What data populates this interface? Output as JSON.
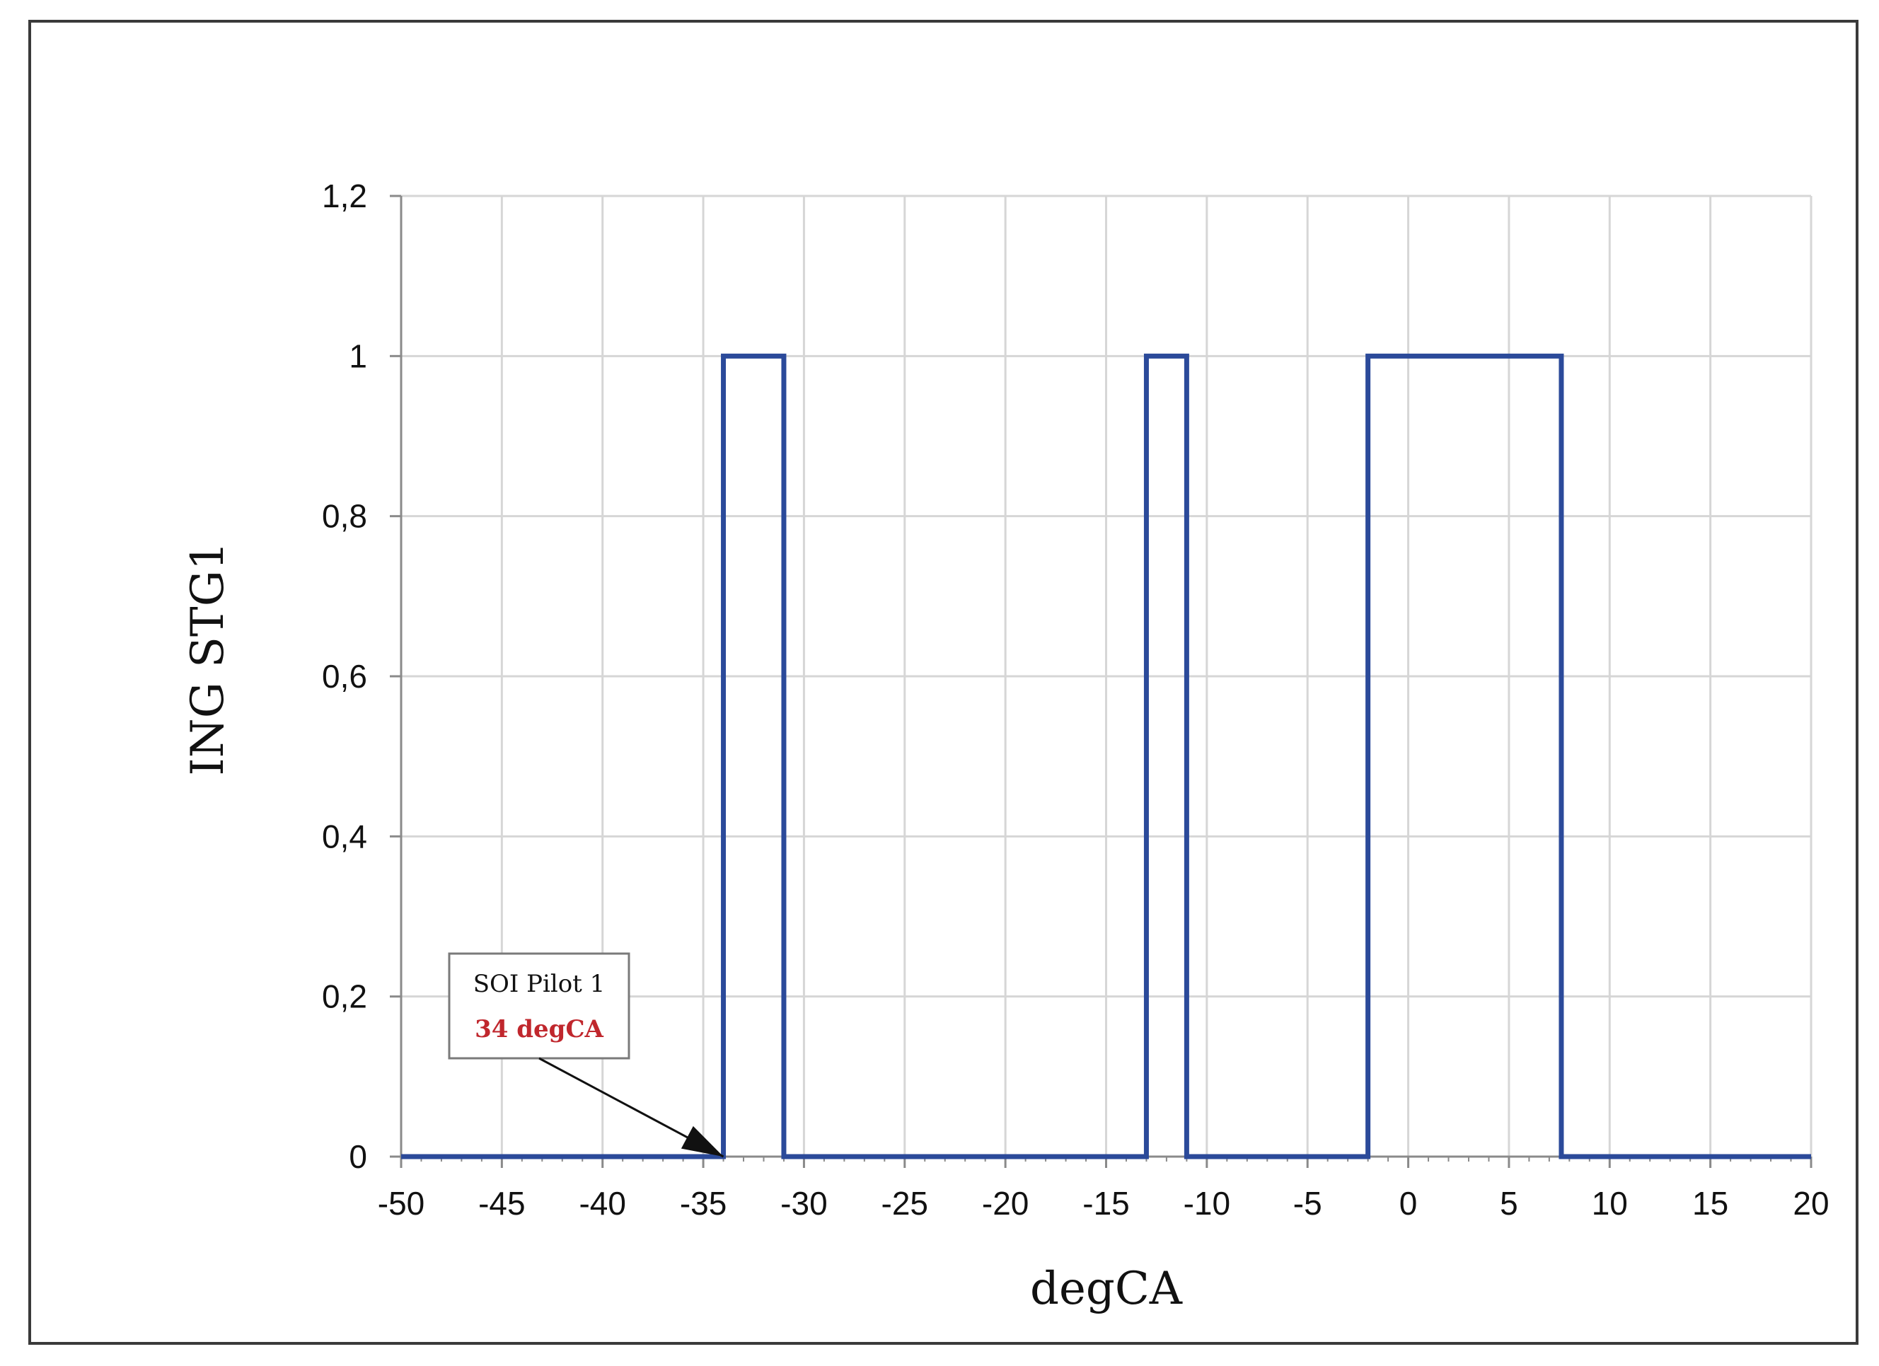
{
  "chart_data": {
    "type": "line",
    "title": "",
    "xlabel": "degCA",
    "ylabel": "ING STG1",
    "xlim": [
      -50,
      20
    ],
    "ylim": [
      0,
      1.2
    ],
    "x_ticks": [
      -50,
      -45,
      -40,
      -35,
      -30,
      -25,
      -20,
      -15,
      -10,
      -5,
      0,
      5,
      10,
      15,
      20
    ],
    "x_tick_labels": [
      "-50",
      "-45",
      "-40",
      "-35",
      "-30",
      "-25",
      "-20",
      "-15",
      "-10",
      "-5",
      "0",
      "5",
      "10",
      "15",
      "20"
    ],
    "y_ticks": [
      0,
      0.2,
      0.4,
      0.6,
      0.8,
      1,
      1.2
    ],
    "y_tick_labels": [
      "0",
      "0,2",
      "0,4",
      "0,6",
      "0,8",
      "1",
      "1,2"
    ],
    "grid": true,
    "series": [
      {
        "color": "#2b4a9a",
        "x": [
          -50,
          -34,
          -34,
          -31,
          -31,
          -13,
          -13,
          -11,
          -11,
          -2,
          -2,
          7.6,
          7.6,
          20
        ],
        "y": [
          0,
          0,
          1,
          1,
          0,
          0,
          1,
          1,
          0,
          0,
          1,
          1,
          0,
          0
        ]
      }
    ],
    "annotations": [
      {
        "line1": "SOI Pilot 1",
        "line2": "34 degCA",
        "line2_color": "#c0272d",
        "points_to": [
          -34,
          0
        ]
      }
    ]
  }
}
